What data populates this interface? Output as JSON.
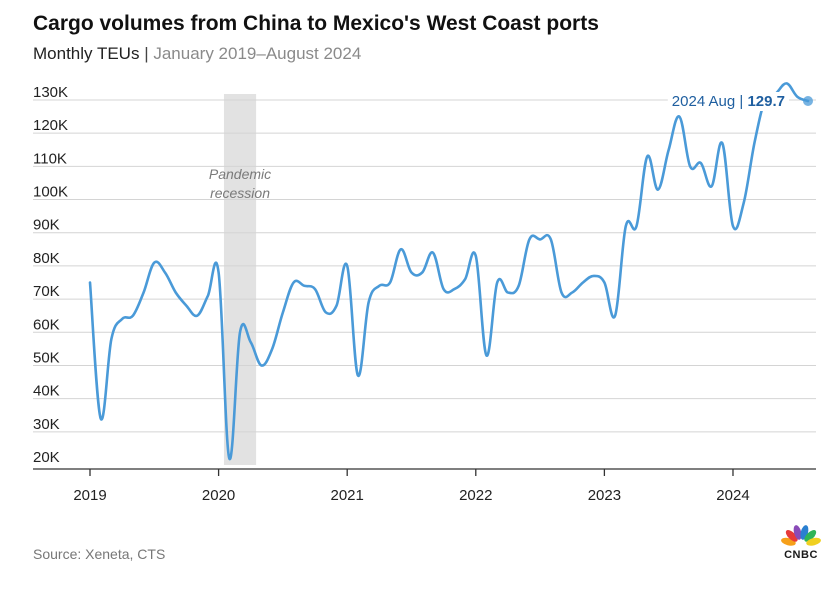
{
  "header": {
    "title": "Cargo volumes from China to Mexico's West Coast ports",
    "subtitle_main": "Monthly TEUs",
    "subtitle_sep": "|",
    "subtitle_range": "January 2019–August 2024"
  },
  "footer": {
    "source": "Source: Xeneta, CTS",
    "logo_text": "CNBC"
  },
  "colors": {
    "line": "#4a9ad8",
    "annotation_text": "#1f5fa0",
    "shade": "#e2e2e2",
    "grid": "#d4d4d4",
    "logo_feathers": [
      "#f6a01a",
      "#e73a3a",
      "#8a4bb8",
      "#2a7fd0",
      "#2fb457",
      "#f0d020"
    ]
  },
  "chart_data": {
    "type": "line",
    "title": "Cargo volumes from China to Mexico's West Coast ports",
    "subtitle": "Monthly TEUs | January 2019–August 2024",
    "xlabel": "",
    "ylabel": "",
    "ylim": [
      20,
      130
    ],
    "y_unit": "K",
    "y_ticks": [
      "20K",
      "30K",
      "40K",
      "50K",
      "60K",
      "70K",
      "80K",
      "90K",
      "100K",
      "110K",
      "120K",
      "130K"
    ],
    "x_ticks": [
      "2019",
      "2020",
      "2021",
      "2022",
      "2023",
      "2024"
    ],
    "grid": true,
    "shaded_region": {
      "label_line1": "Pandemic",
      "label_line2": "recession",
      "start": "2020-02",
      "end": "2020-04"
    },
    "annotation": {
      "label": "2024 Aug",
      "sep": "|",
      "value": "129.7"
    },
    "series": [
      {
        "x": [
          "2019-01",
          "2019-02",
          "2019-03",
          "2019-04",
          "2019-05",
          "2019-06",
          "2019-07",
          "2019-08",
          "2019-09",
          "2019-10",
          "2019-11",
          "2019-12",
          "2020-01",
          "2020-02",
          "2020-03",
          "2020-04",
          "2020-05",
          "2020-06",
          "2020-07",
          "2020-08",
          "2020-09",
          "2020-10",
          "2020-11",
          "2020-12",
          "2021-01",
          "2021-02",
          "2021-03",
          "2021-04",
          "2021-05",
          "2021-06",
          "2021-07",
          "2021-08",
          "2021-09",
          "2021-10",
          "2021-11",
          "2021-12",
          "2022-01",
          "2022-02",
          "2022-03",
          "2022-04",
          "2022-05",
          "2022-06",
          "2022-07",
          "2022-08",
          "2022-09",
          "2022-10",
          "2022-11",
          "2022-12",
          "2023-01",
          "2023-02",
          "2023-03",
          "2023-04",
          "2023-05",
          "2023-06",
          "2023-07",
          "2023-08",
          "2023-09",
          "2023-10",
          "2023-11",
          "2023-12",
          "2024-01",
          "2024-02",
          "2024-03",
          "2024-04",
          "2024-05",
          "2024-06",
          "2024-07",
          "2024-08"
        ],
        "values": [
          75,
          34,
          58,
          64,
          65,
          72,
          81,
          78,
          72,
          68,
          65,
          71,
          78,
          22,
          60,
          57,
          50,
          55,
          66,
          75,
          74,
          73,
          66,
          68,
          80,
          47,
          69,
          74,
          75,
          85,
          78,
          78,
          84,
          73,
          73,
          76,
          83,
          53,
          75,
          72,
          74,
          88,
          88,
          88,
          72,
          72,
          75,
          77,
          75,
          65,
          92,
          92,
          113,
          103,
          115,
          125,
          110,
          111,
          104,
          117,
          92,
          99,
          117,
          130,
          132,
          135,
          131,
          129.7
        ]
      }
    ]
  }
}
